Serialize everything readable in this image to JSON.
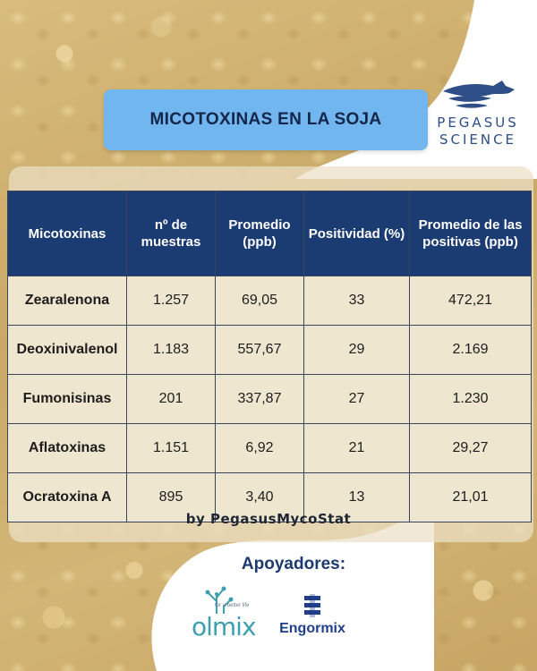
{
  "header": {
    "title": "MICOTOXINAS EN LA SOJA"
  },
  "brand": {
    "line1": "PEGASUS",
    "line2": "SCIENCE",
    "icon": "pegasus-wing-icon"
  },
  "table": {
    "columns": [
      "Micotoxinas",
      "nº de muestras",
      "Promedio (ppb)",
      "Positividad (%)",
      "Promedio de las positivas (ppb)"
    ],
    "rows": [
      [
        "Zearalenona",
        "1.257",
        "69,05",
        "33",
        "472,21"
      ],
      [
        "Deoxinivalenol",
        "1.183",
        "557,67",
        "29",
        "2.169"
      ],
      [
        "Fumonisinas",
        "201",
        "337,87",
        "27",
        "1.230"
      ],
      [
        "Aflatoxinas",
        "1.151",
        "6,92",
        "21",
        "29,27"
      ],
      [
        "Ocratoxina A",
        "895",
        "3,40",
        "13",
        "21,01"
      ]
    ]
  },
  "credit": "by PegasusMycoStat",
  "supporters": {
    "label": "Apoyadores:",
    "logos": [
      {
        "name": "olmix",
        "word": "olmix",
        "tagline": "for a better life"
      },
      {
        "name": "engormix",
        "word": "Engormix"
      }
    ]
  },
  "colors": {
    "banner": "#72b6ef",
    "table_header": "#1b3b73",
    "brand_blue": "#2d4e86"
  }
}
